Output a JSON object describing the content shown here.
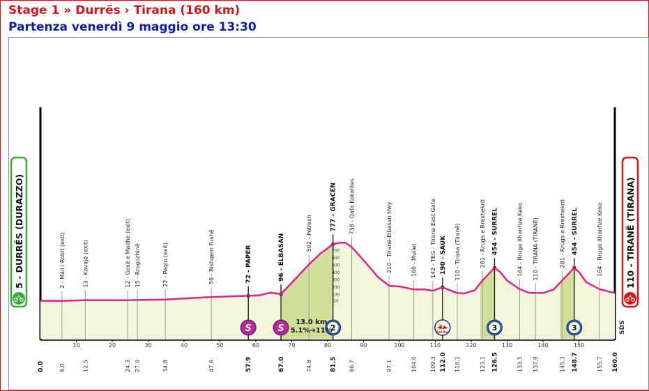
{
  "header": {
    "title": "Stage 1 » Durrës › Tirana (160 km)",
    "subtitle": "Partenza venerdì 9 maggio ore 13:30"
  },
  "colors": {
    "title": "#d5141b",
    "subtitle": "#0f1da8",
    "profile_line": "#e0218a",
    "profile_fill": "#f4f6dc",
    "climb_fill": "#c9dc8c",
    "start_box": "#3aa83a",
    "finish_box": "#d5141b",
    "sprint": "#b5279b",
    "kom": "#2f59a8"
  },
  "chart_data": {
    "type": "area",
    "title": "Stage 1 » Durrës › Tirana (160 km)",
    "xlim": [
      0,
      160
    ],
    "x_ticks": [
      10,
      20,
      30,
      40,
      50,
      60,
      70,
      80,
      90,
      100,
      110,
      120,
      130,
      140,
      150
    ],
    "y_ticks": [
      10,
      100,
      200,
      300,
      400,
      500,
      600,
      700
    ],
    "ylim": [
      0,
      800
    ],
    "profile": [
      {
        "x": 0,
        "y": 5
      },
      {
        "x": 6,
        "y": 2
      },
      {
        "x": 12.5,
        "y": 13
      },
      {
        "x": 24.3,
        "y": 12
      },
      {
        "x": 27,
        "y": 15
      },
      {
        "x": 34.8,
        "y": 22
      },
      {
        "x": 47.6,
        "y": 56
      },
      {
        "x": 57.9,
        "y": 72
      },
      {
        "x": 61,
        "y": 80
      },
      {
        "x": 64,
        "y": 115
      },
      {
        "x": 67,
        "y": 96
      },
      {
        "x": 70,
        "y": 250
      },
      {
        "x": 74.8,
        "y": 502
      },
      {
        "x": 78,
        "y": 650
      },
      {
        "x": 81.5,
        "y": 777
      },
      {
        "x": 83.5,
        "y": 800
      },
      {
        "x": 85,
        "y": 795
      },
      {
        "x": 86.7,
        "y": 738
      },
      {
        "x": 90,
        "y": 560
      },
      {
        "x": 94,
        "y": 330
      },
      {
        "x": 97.1,
        "y": 210
      },
      {
        "x": 100,
        "y": 200
      },
      {
        "x": 104,
        "y": 160
      },
      {
        "x": 107,
        "y": 160
      },
      {
        "x": 109.3,
        "y": 142
      },
      {
        "x": 112,
        "y": 190
      },
      {
        "x": 114,
        "y": 150
      },
      {
        "x": 116.1,
        "y": 110
      },
      {
        "x": 118,
        "y": 105
      },
      {
        "x": 121,
        "y": 150
      },
      {
        "x": 123.1,
        "y": 281
      },
      {
        "x": 126.5,
        "y": 454
      },
      {
        "x": 128,
        "y": 400
      },
      {
        "x": 130,
        "y": 280
      },
      {
        "x": 133.5,
        "y": 164
      },
      {
        "x": 136,
        "y": 115
      },
      {
        "x": 137.9,
        "y": 110
      },
      {
        "x": 140,
        "y": 110
      },
      {
        "x": 143,
        "y": 160
      },
      {
        "x": 145.3,
        "y": 281
      },
      {
        "x": 148.7,
        "y": 454
      },
      {
        "x": 150,
        "y": 400
      },
      {
        "x": 152,
        "y": 260
      },
      {
        "x": 155.7,
        "y": 164
      },
      {
        "x": 160,
        "y": 110
      }
    ],
    "climbs": [
      {
        "from": 67,
        "to": 81.5
      },
      {
        "from": 122.5,
        "to": 126.5
      },
      {
        "from": 144.7,
        "to": 148.7
      }
    ],
    "start": {
      "label": "5 - DURRËS (DURAZZO)",
      "x": 0,
      "km": "0.0"
    },
    "finish": {
      "label": "110 - TIRANË (TIRANA)",
      "x": 160,
      "km": "160.0"
    },
    "waypoints": [
      {
        "x": 6.0,
        "km": "6.0",
        "label": "2 - Mali i Robit (exit)",
        "bold": false
      },
      {
        "x": 12.5,
        "km": "12.5",
        "label": "13 - Kavajë (exit)",
        "bold": false
      },
      {
        "x": 24.3,
        "km": "24.3",
        "label": "12 - Gosë e Madhe (exit)",
        "bold": false
      },
      {
        "x": 27.0,
        "km": "27.0",
        "label": "15 - Rrogozhinë",
        "bold": false
      },
      {
        "x": 34.8,
        "km": "34.8",
        "label": "22 - Peqin (exit)",
        "bold": false
      },
      {
        "x": 47.6,
        "km": "47.6",
        "label": "56 - Bishqem Fushë",
        "bold": false
      },
      {
        "x": 57.9,
        "km": "57.9",
        "label": "72 - PAPER",
        "bold": true
      },
      {
        "x": 67.0,
        "km": "67.0",
        "label": "96 - ELBASAN",
        "bold": true
      },
      {
        "x": 74.8,
        "km": "74.8",
        "label": "502 - Petresh",
        "bold": false
      },
      {
        "x": 81.5,
        "km": "81.5",
        "label": "777 - GRACEN",
        "bold": true
      },
      {
        "x": 86.7,
        "km": "86.7",
        "label": "738 - Qafa Kokalites",
        "bold": false
      },
      {
        "x": 97.1,
        "km": "97.1",
        "label": "210 - Tiranë-Elbasan Hwy",
        "bold": false
      },
      {
        "x": 104.0,
        "km": "104.0",
        "label": "160 - Mullet",
        "bold": false
      },
      {
        "x": 109.3,
        "km": "109.3",
        "label": "142 - TEG - Tirana East Gate",
        "bold": false
      },
      {
        "x": 112.0,
        "km": "112.0",
        "label": "190 - SAUK",
        "bold": true
      },
      {
        "x": 116.1,
        "km": "116.1",
        "label": "110 - Tirana (Tiranë)",
        "bold": false
      },
      {
        "x": 123.1,
        "km": "123.1",
        "label": "281 - Rruga e Rrexhekrit",
        "bold": false
      },
      {
        "x": 126.5,
        "km": "126.5",
        "label": "454 - SURREL",
        "bold": true
      },
      {
        "x": 133.5,
        "km": "133.5",
        "label": "164 - Rruga Xhanfize Keko",
        "bold": false
      },
      {
        "x": 137.9,
        "km": "137.9",
        "label": "110 - TIRANA (TIRANË)",
        "bold": false
      },
      {
        "x": 145.3,
        "km": "145.3",
        "label": "281 - Rruga e Rrexhekrit",
        "bold": false
      },
      {
        "x": 148.7,
        "km": "148.7",
        "label": "454 - SURREL",
        "bold": true
      },
      {
        "x": 155.7,
        "km": "155.7",
        "label": "164 - Rruga Xhanfize Keko",
        "bold": false
      }
    ],
    "markers": [
      {
        "x": 57.9,
        "type": "sprint",
        "text": "S"
      },
      {
        "x": 67.0,
        "type": "sprint",
        "text": "S"
      },
      {
        "x": 81.5,
        "type": "kom",
        "text": "2"
      },
      {
        "x": 112.0,
        "type": "redbull",
        "text": "Red Bull"
      },
      {
        "x": 126.5,
        "type": "kom",
        "text": "3"
      },
      {
        "x": 148.7,
        "type": "kom",
        "text": "3"
      }
    ],
    "climb_info": {
      "distance": "13.0 km",
      "grade": "5.1%➔11%"
    },
    "logo_text": "SDS"
  }
}
